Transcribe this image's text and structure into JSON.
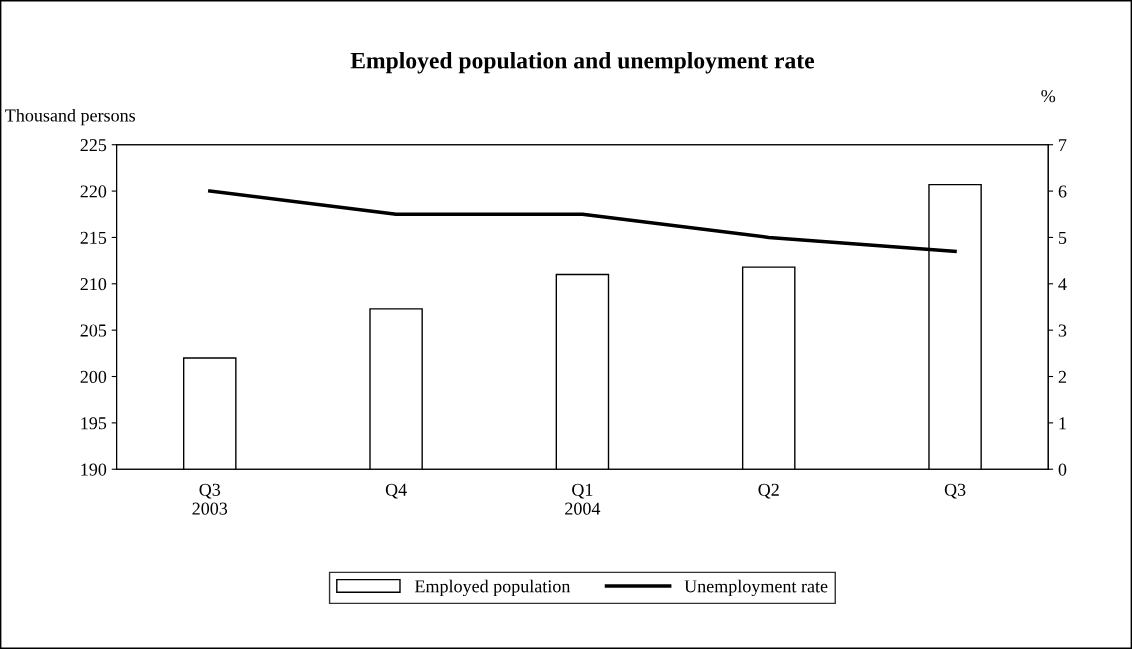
{
  "chart_data": {
    "type": "bar",
    "title": "Employed population and unemployment rate",
    "ylabel": "Thousand persons",
    "y2label": "%",
    "categories": [
      "Q3\n2003",
      "Q4",
      "Q1\n2004",
      "Q2",
      "Q3"
    ],
    "series": [
      {
        "name": "Employed population",
        "color": "#ffffff",
        "values": [
          202.0,
          207.3,
          211.0,
          211.8,
          220.7
        ]
      },
      {
        "name": "Unemployment rate",
        "type": "line",
        "axis": "y2",
        "color": "#000000",
        "values": [
          6.0,
          5.5,
          5.5,
          5.0,
          4.7
        ]
      }
    ],
    "ylim": [
      190,
      225
    ],
    "yticks": [
      190,
      195,
      200,
      205,
      210,
      215,
      220,
      225
    ],
    "y2lim": [
      0,
      7
    ],
    "y2ticks": [
      0,
      1,
      2,
      3,
      4,
      5,
      6,
      7
    ],
    "grid": false,
    "legend": "bottom",
    "marker": "none",
    "line_style": "solid"
  }
}
